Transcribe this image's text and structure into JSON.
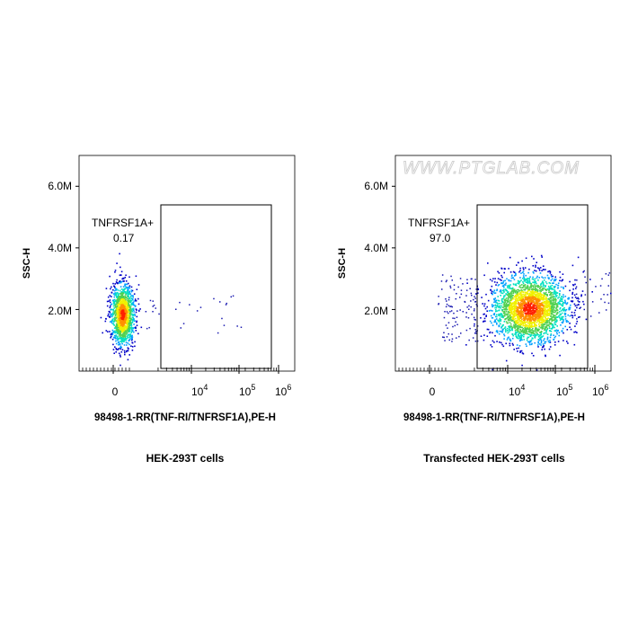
{
  "watermark": "WWW.PTGLAB.COM",
  "chart_data": [
    {
      "type": "scatter",
      "subtype": "flow-cytometry-density-dot-plot",
      "caption": "HEK-293T cells",
      "xlabel": "98498-1-RR(TNF-RI/TNFRSF1A),PE-H",
      "ylabel": "SSC-H",
      "x_scale": "biexponential",
      "x_ticks": [
        {
          "base": "0",
          "exp": ""
        },
        {
          "base": "10",
          "exp": "4"
        },
        {
          "base": "10",
          "exp": "5"
        },
        {
          "base": "10",
          "exp": "6"
        }
      ],
      "y_ticks": [
        "2.0M",
        "4.0M",
        "6.0M"
      ],
      "ylim": [
        0,
        7000000
      ],
      "gate": {
        "name": "TNFRSF1A+",
        "percent": "0.17"
      },
      "population": {
        "x_center": "≈0",
        "y_center": 1700000,
        "positive_fraction": 0.17
      },
      "density_colors": [
        "#0000c8",
        "#00a0ff",
        "#00e0c0",
        "#50d050",
        "#f0f000",
        "#ff9000",
        "#ff2000"
      ]
    },
    {
      "type": "scatter",
      "subtype": "flow-cytometry-density-dot-plot",
      "caption": "Transfected HEK-293T cells",
      "xlabel": "98498-1-RR(TNF-RI/TNFRSF1A),PE-H",
      "ylabel": "SSC-H",
      "x_scale": "biexponential",
      "x_ticks": [
        {
          "base": "0",
          "exp": ""
        },
        {
          "base": "10",
          "exp": "4"
        },
        {
          "base": "10",
          "exp": "5"
        },
        {
          "base": "10",
          "exp": "6"
        }
      ],
      "y_ticks": [
        "2.0M",
        "4.0M",
        "6.0M"
      ],
      "ylim": [
        0,
        7000000
      ],
      "gate": {
        "name": "TNFRSF1A+",
        "percent": "97.0"
      },
      "population": {
        "x_center": "≈10^4",
        "y_center": 1800000,
        "positive_fraction": 97.0
      },
      "density_colors": [
        "#0000c8",
        "#00a0ff",
        "#00e0c0",
        "#50d050",
        "#f0f000",
        "#ff9000",
        "#ff2000"
      ]
    }
  ]
}
